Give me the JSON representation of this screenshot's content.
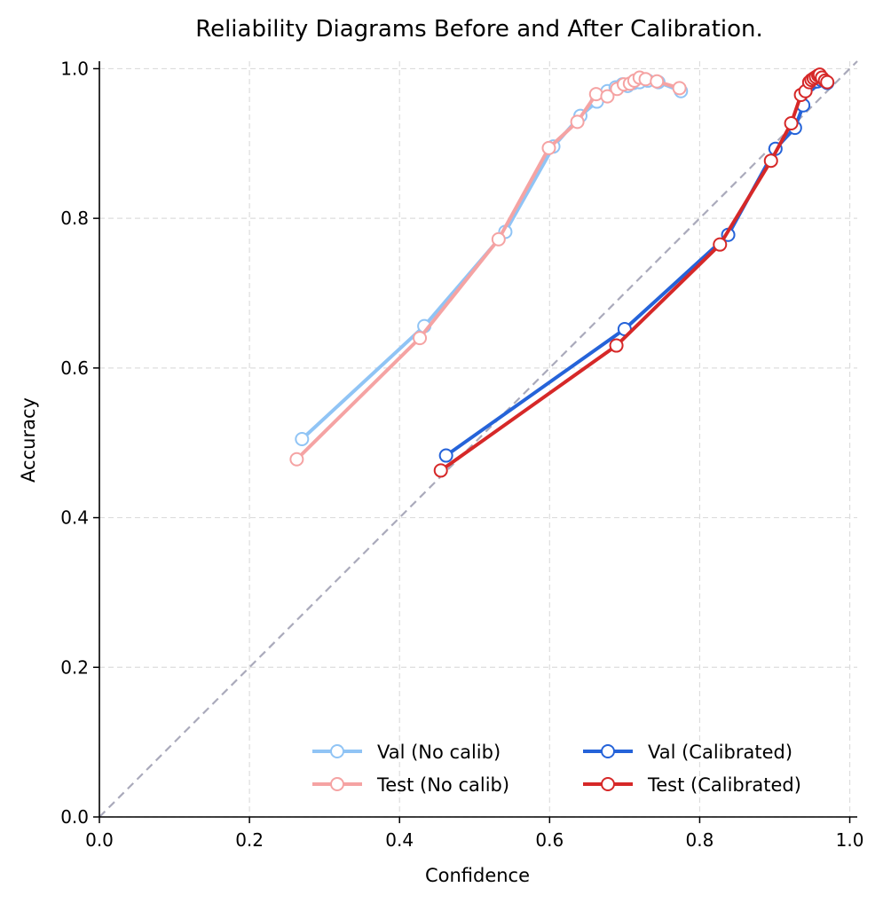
{
  "chart_data": {
    "type": "line",
    "title": "Reliability Diagrams Before and After Calibration.",
    "xlabel": "Confidence",
    "ylabel": "Accuracy",
    "xlim": [
      0.0,
      1.01
    ],
    "ylim": [
      0.0,
      1.01
    ],
    "xticks": [
      "0.0",
      "0.2",
      "0.4",
      "0.6",
      "0.8",
      "1.0"
    ],
    "yticks": [
      "0.0",
      "0.2",
      "0.4",
      "0.6",
      "0.8",
      "1.0"
    ],
    "grid": true,
    "legend_position": "lower-right",
    "reference_line": {
      "style": "dashed",
      "color": "#aaaabb",
      "points": [
        [
          0,
          0
        ],
        [
          1,
          1
        ]
      ]
    },
    "series": [
      {
        "name": "Val (No calib)",
        "color": "#90c4f5",
        "x": [
          0.27,
          0.433,
          0.541,
          0.605,
          0.641,
          0.663,
          0.677,
          0.688,
          0.697,
          0.704,
          0.712,
          0.72,
          0.731,
          0.745,
          0.775
        ],
        "y": [
          0.505,
          0.656,
          0.782,
          0.896,
          0.937,
          0.956,
          0.97,
          0.975,
          0.979,
          0.977,
          0.981,
          0.982,
          0.984,
          0.982,
          0.97
        ]
      },
      {
        "name": "Test (No calib)",
        "color": "#f5a3a3",
        "x": [
          0.263,
          0.427,
          0.532,
          0.599,
          0.637,
          0.662,
          0.677,
          0.69,
          0.699,
          0.707,
          0.713,
          0.72,
          0.728,
          0.743,
          0.773
        ],
        "y": [
          0.478,
          0.64,
          0.772,
          0.894,
          0.929,
          0.966,
          0.963,
          0.973,
          0.979,
          0.98,
          0.984,
          0.988,
          0.986,
          0.983,
          0.974
        ]
      },
      {
        "name": "Val (Calibrated)",
        "color": "#2563d9",
        "x": [
          0.462,
          0.7,
          0.838,
          0.901,
          0.927,
          0.938,
          0.946,
          0.952,
          0.957,
          0.962,
          0.97
        ],
        "y": [
          0.483,
          0.652,
          0.778,
          0.893,
          0.921,
          0.951,
          0.978,
          0.982,
          0.983,
          0.985,
          0.981
        ]
      },
      {
        "name": "Test (Calibrated)",
        "color": "#d62828",
        "x": [
          0.455,
          0.689,
          0.827,
          0.895,
          0.922,
          0.935,
          0.941,
          0.946,
          0.949,
          0.952,
          0.955,
          0.958,
          0.96,
          0.963,
          0.967,
          0.97
        ],
        "y": [
          0.463,
          0.63,
          0.765,
          0.877,
          0.927,
          0.965,
          0.97,
          0.982,
          0.985,
          0.987,
          0.989,
          0.991,
          0.992,
          0.988,
          0.984,
          0.982
        ]
      }
    ]
  }
}
